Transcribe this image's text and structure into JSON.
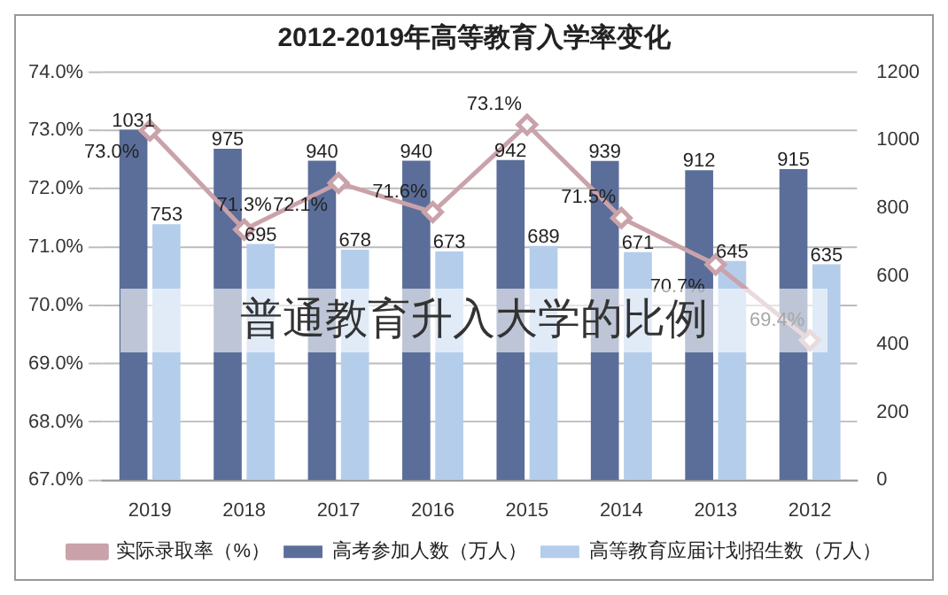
{
  "chart_data": {
    "type": "bar",
    "title": "2012-2019年高等教育入学率变化",
    "categories": [
      "2019",
      "2018",
      "2017",
      "2016",
      "2015",
      "2014",
      "2013",
      "2012"
    ],
    "series": [
      {
        "name": "高考参加人数（万人）",
        "color": "#5b6e9a",
        "axis": "y2",
        "values": [
          1031,
          975,
          940,
          940,
          942,
          939,
          912,
          915
        ]
      },
      {
        "name": "高等教育应届计划招生数（万人）",
        "color": "#b4cdea",
        "axis": "y2",
        "values": [
          753,
          695,
          678,
          673,
          689,
          671,
          645,
          635
        ]
      },
      {
        "name": "实际录取率（%）",
        "type": "line",
        "color": "#c9a2aa",
        "marker": "diamond",
        "values": [
          73.0,
          71.3,
          72.1,
          71.6,
          73.1,
          71.5,
          70.7,
          69.4
        ],
        "value_labels": [
          "73.0%",
          "71.3%",
          "72.1%",
          "71.6%",
          "73.1%",
          "71.5%",
          "70.7%",
          "69.4%"
        ]
      }
    ],
    "ylim": [
      67,
      74
    ],
    "yticks": [
      {
        "value": 67,
        "label": "67.0%"
      },
      {
        "value": 68,
        "label": "68.0%"
      },
      {
        "value": 69,
        "label": "69.0%"
      },
      {
        "value": 70,
        "label": "70.0%"
      },
      {
        "value": 71,
        "label": "71.0%"
      },
      {
        "value": 72,
        "label": "72.0%"
      },
      {
        "value": 73,
        "label": "73.0%"
      },
      {
        "value": 74,
        "label": "74.0%"
      }
    ],
    "y2lim": [
      0,
      1200
    ],
    "y2ticks": [
      0,
      200,
      400,
      600,
      800,
      1000,
      1200
    ],
    "grid": "y",
    "legend": "bottom",
    "data_labels": true,
    "annotations": [
      "普通教育升入大学的比例"
    ]
  }
}
